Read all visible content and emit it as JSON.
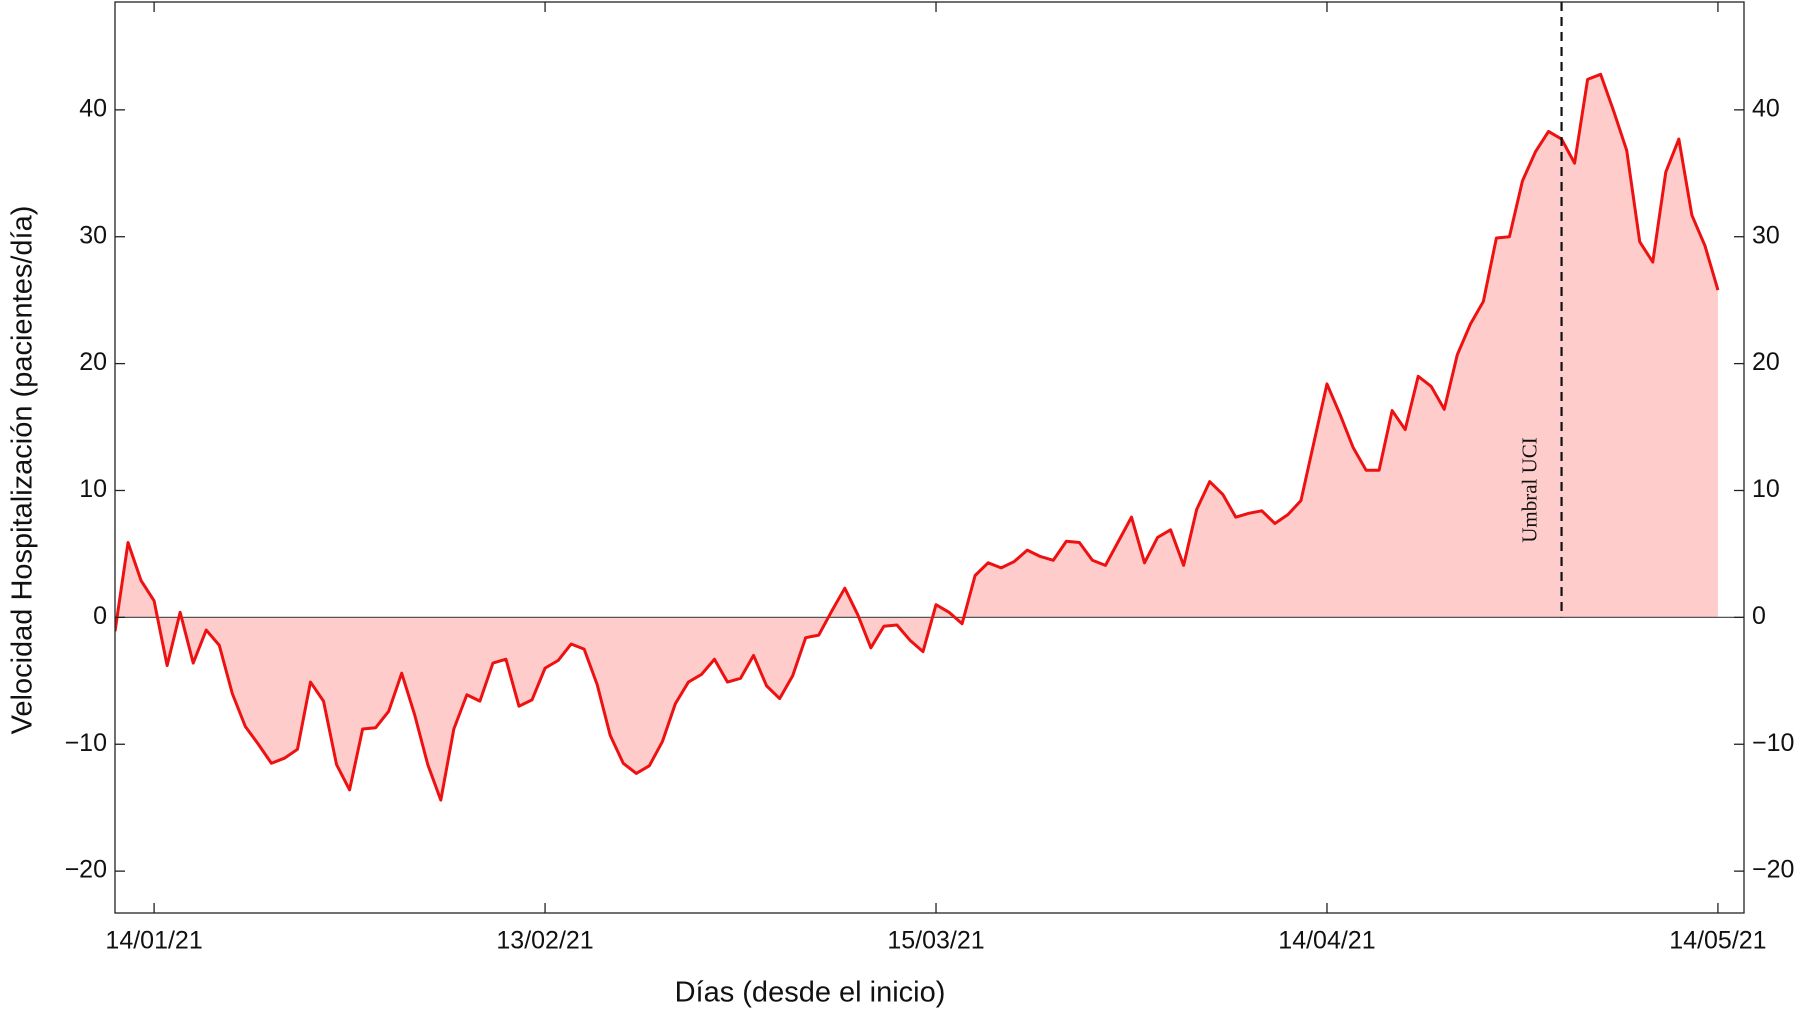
{
  "chart_data": {
    "type": "area",
    "xlabel": "Días (desde el inicio)",
    "ylabel": "Velocidad Hospitalización (pacientes/día)",
    "x": [
      "11/01/21",
      "12/01/21",
      "13/01/21",
      "14/01/21",
      "15/01/21",
      "16/01/21",
      "17/01/21",
      "18/01/21",
      "19/01/21",
      "20/01/21",
      "21/01/21",
      "22/01/21",
      "23/01/21",
      "24/01/21",
      "25/01/21",
      "26/01/21",
      "27/01/21",
      "28/01/21",
      "29/01/21",
      "30/01/21",
      "31/01/21",
      "01/02/21",
      "02/02/21",
      "03/02/21",
      "04/02/21",
      "05/02/21",
      "06/02/21",
      "07/02/21",
      "08/02/21",
      "09/02/21",
      "10/02/21",
      "11/02/21",
      "12/02/21",
      "13/02/21",
      "14/02/21",
      "15/02/21",
      "16/02/21",
      "17/02/21",
      "18/02/21",
      "19/02/21",
      "20/02/21",
      "21/02/21",
      "22/02/21",
      "23/02/21",
      "24/02/21",
      "25/02/21",
      "26/02/21",
      "27/02/21",
      "28/02/21",
      "01/03/21",
      "02/03/21",
      "03/03/21",
      "04/03/21",
      "05/03/21",
      "06/03/21",
      "07/03/21",
      "08/03/21",
      "09/03/21",
      "10/03/21",
      "11/03/21",
      "12/03/21",
      "13/03/21",
      "14/03/21",
      "15/03/21",
      "16/03/21",
      "17/03/21",
      "18/03/21",
      "19/03/21",
      "20/03/21",
      "21/03/21",
      "22/03/21",
      "23/03/21",
      "24/03/21",
      "25/03/21",
      "26/03/21",
      "27/03/21",
      "28/03/21",
      "29/03/21",
      "30/03/21",
      "31/03/21",
      "01/04/21",
      "02/04/21",
      "03/04/21",
      "04/04/21",
      "05/04/21",
      "06/04/21",
      "07/04/21",
      "08/04/21",
      "09/04/21",
      "10/04/21",
      "11/04/21",
      "12/04/21",
      "13/04/21",
      "14/04/21",
      "15/04/21",
      "16/04/21",
      "17/04/21",
      "18/04/21",
      "19/04/21",
      "20/04/21",
      "21/04/21",
      "22/04/21",
      "23/04/21",
      "24/04/21",
      "25/04/21",
      "26/04/21",
      "27/04/21",
      "28/04/21",
      "29/04/21",
      "30/04/21",
      "01/05/21",
      "02/05/21",
      "03/05/21",
      "04/05/21",
      "05/05/21",
      "06/05/21",
      "07/05/21",
      "08/05/21",
      "09/05/21",
      "10/05/21",
      "11/05/21",
      "12/05/21",
      "13/05/21",
      "14/05/21"
    ],
    "values": [
      -1.1,
      5.9,
      2.9,
      1.3,
      -3.8,
      0.4,
      -3.6,
      -1.0,
      -2.2,
      -6.0,
      -8.6,
      -10.0,
      -11.5,
      -11.1,
      -10.4,
      -5.1,
      -6.6,
      -11.6,
      -13.6,
      -8.8,
      -8.7,
      -7.4,
      -4.4,
      -7.7,
      -11.6,
      -14.4,
      -8.8,
      -6.1,
      -6.6,
      -3.6,
      -3.3,
      -7.0,
      -6.5,
      -4.0,
      -3.4,
      -2.1,
      -2.5,
      -5.3,
      -9.3,
      -11.5,
      -12.3,
      -11.7,
      -9.8,
      -6.8,
      -5.1,
      -4.5,
      -3.3,
      -5.1,
      -4.8,
      -3.0,
      -5.4,
      -6.4,
      -4.6,
      -1.6,
      -1.4,
      0.5,
      2.3,
      0.2,
      -2.4,
      -0.7,
      -0.6,
      -1.8,
      -2.7,
      1.0,
      0.4,
      -0.5,
      3.3,
      4.3,
      3.9,
      4.4,
      5.3,
      4.8,
      4.5,
      6.0,
      5.9,
      4.5,
      4.1,
      6.0,
      7.9,
      4.3,
      6.3,
      6.9,
      4.1,
      8.5,
      10.7,
      9.7,
      7.9,
      8.2,
      8.4,
      7.4,
      8.1,
      9.2,
      13.8,
      18.4,
      16.0,
      13.4,
      11.6,
      11.6,
      16.3,
      14.8,
      19.0,
      18.2,
      16.4,
      20.7,
      23.1,
      24.9,
      29.9,
      30.0,
      34.4,
      36.7,
      38.3,
      37.7,
      35.8,
      42.4,
      42.8,
      39.9,
      36.8,
      29.6,
      28.0,
      35.1,
      37.7,
      31.7,
      29.3,
      25.8
    ],
    "color": "#ee1111",
    "fill_color": "#ffcccc",
    "xlim": [
      "11/01/21",
      "16/05/21"
    ],
    "xticks": [
      "14/01/21",
      "13/02/21",
      "15/03/21",
      "14/04/21",
      "14/05/21"
    ],
    "ylim": [
      -23.3,
      48.5
    ],
    "yticks": [
      {
        "value": -20,
        "label": "−20"
      },
      {
        "value": -10,
        "label": "−10"
      },
      0,
      10,
      20,
      30,
      40
    ],
    "vline": {
      "x": "02/05/21",
      "label": "Umbral UCI"
    }
  }
}
